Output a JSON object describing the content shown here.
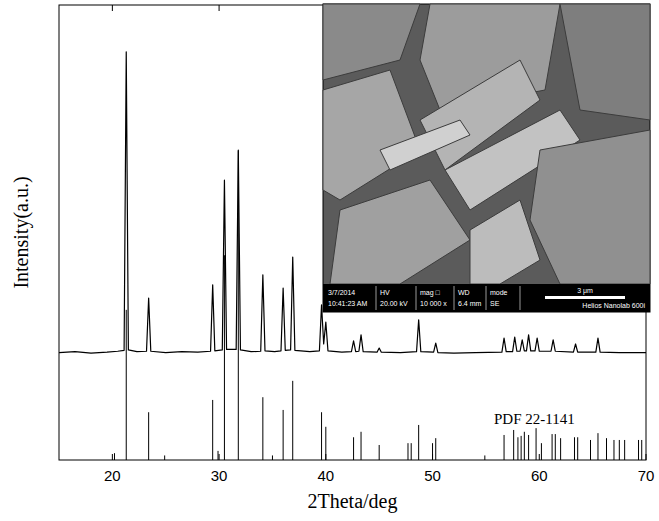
{
  "chart_data": {
    "type": "line",
    "x_label": "2Theta/deg",
    "y_label": "Intensity(a.u.)",
    "xlim": [
      15,
      70
    ],
    "xticks": [
      20,
      30,
      40,
      50,
      60,
      70
    ],
    "ylim": [
      0,
      100
    ],
    "tick_labels": "x",
    "grid": false,
    "series": [
      {
        "type": "line",
        "color": "#000000",
        "x": [
          15,
          16.5,
          18,
          19.5,
          20.5,
          21.1,
          21.3,
          21.5,
          22.3,
          23.2,
          23.4,
          23.6,
          25,
          26.5,
          28,
          29.2,
          29.4,
          29.6,
          30.3,
          30.5,
          30.7,
          31.6,
          31.8,
          32,
          33,
          33.9,
          34.1,
          34.3,
          35.2,
          35.8,
          36,
          36.2,
          36.7,
          36.9,
          37.1,
          38.5,
          39.4,
          39.6,
          39.8,
          40,
          40.2,
          41.5,
          42.4,
          42.6,
          42.8,
          43.1,
          43.3,
          43.5,
          44.8,
          45,
          45.2,
          47,
          48.5,
          48.7,
          48.9,
          50.1,
          50.3,
          50.5,
          52,
          54,
          56.5,
          56.7,
          56.9,
          57.5,
          57.7,
          57.9,
          58.2,
          58.4,
          58.6,
          58.8,
          59,
          59.2,
          59.6,
          59.8,
          60,
          61.1,
          61.3,
          61.5,
          63.2,
          63.4,
          63.6,
          65.3,
          65.5,
          65.7,
          67.5,
          70
        ],
        "values": [
          23.6,
          23.8,
          23.5,
          23.7,
          23.9,
          24.1,
          89.7,
          24.2,
          23.8,
          23.9,
          35.6,
          23.9,
          23.6,
          23.8,
          23.7,
          23.9,
          38.5,
          24.0,
          24.2,
          61.5,
          24.3,
          24.3,
          68.1,
          24.2,
          23.8,
          23.9,
          40.7,
          24.0,
          23.8,
          24.0,
          37.8,
          24.1,
          24.2,
          44.6,
          24.1,
          23.8,
          24.0,
          34.1,
          25.5,
          30.3,
          24.0,
          23.7,
          23.8,
          26.2,
          23.8,
          23.9,
          27.5,
          23.8,
          23.7,
          24.6,
          23.7,
          23.6,
          23.8,
          30.8,
          23.8,
          23.7,
          25.7,
          23.6,
          23.5,
          23.6,
          23.7,
          26.8,
          23.8,
          23.8,
          27.0,
          23.9,
          23.9,
          26.4,
          24.0,
          24.0,
          27.5,
          24.0,
          24.0,
          26.8,
          23.9,
          23.9,
          26.4,
          23.9,
          23.7,
          25.5,
          23.7,
          23.7,
          26.8,
          23.7,
          23.6,
          23.6
        ]
      },
      {
        "type": "bar",
        "name": "PDF 22-1141",
        "color": "#000000",
        "x": [
          20.2,
          21.3,
          23.4,
          24.9,
          29.4,
          29.9,
          30.5,
          31.8,
          34.1,
          35.0,
          36.0,
          36.9,
          39.6,
          40.0,
          42.6,
          43.3,
          45.0,
          47.7,
          48.0,
          48.7,
          50.0,
          50.3,
          54.9,
          56.7,
          57.6,
          58.0,
          58.3,
          58.6,
          59.0,
          59.7,
          60.2,
          61.2,
          61.5,
          62.0,
          63.3,
          63.6,
          64.8,
          65.5,
          66.3,
          67.0,
          67.5,
          68.0,
          69.3,
          69.6
        ],
        "values": [
          1.5,
          33,
          10.5,
          1,
          13.2,
          2,
          45,
          68,
          13.8,
          1,
          11,
          17.4,
          10.5,
          7.3,
          5,
          6.2,
          3.3,
          3.7,
          3.7,
          7.7,
          3.7,
          4.8,
          1,
          5.5,
          6.6,
          5,
          5.3,
          6.2,
          5.5,
          7,
          3.7,
          5.7,
          5.7,
          4.8,
          5,
          5,
          4.4,
          5.9,
          4.8,
          4.4,
          4.4,
          4.4,
          4.4,
          4.4
        ]
      }
    ]
  },
  "inset": {
    "date": "3/7/2014",
    "time": "10:41:23 AM",
    "fields": [
      {
        "label": "HV",
        "value": "20.00 kV"
      },
      {
        "label": "mag □",
        "value": "10 000 x"
      },
      {
        "label": "WD",
        "value": "6.4 mm"
      },
      {
        "label": "mode",
        "value": "SE"
      }
    ],
    "scale_bar": "3 μm",
    "instrument": "Helios Nanolab 600i"
  }
}
